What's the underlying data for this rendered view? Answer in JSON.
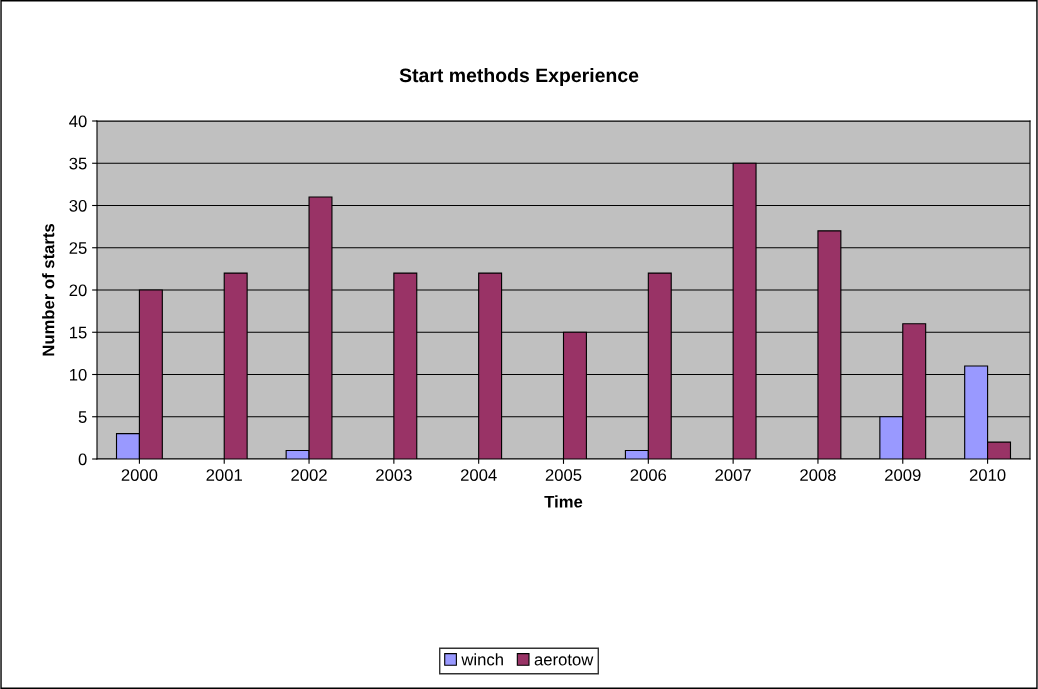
{
  "chart_data": {
    "type": "bar",
    "title": "Start methods Experience",
    "xlabel": "Time",
    "ylabel": "Number of starts",
    "categories": [
      "2000",
      "2001",
      "2002",
      "2003",
      "2004",
      "2005",
      "2006",
      "2007",
      "2008",
      "2009",
      "2010"
    ],
    "series": [
      {
        "name": "winch",
        "color": "#9999ff",
        "values": [
          3,
          0,
          1,
          0,
          0,
          0,
          1,
          0,
          0,
          5,
          11
        ]
      },
      {
        "name": "aerotow",
        "color": "#993366",
        "values": [
          20,
          22,
          31,
          22,
          22,
          15,
          22,
          35,
          27,
          16,
          2
        ]
      }
    ],
    "ylim": [
      0,
      40
    ],
    "yticks": [
      0,
      5,
      10,
      15,
      20,
      25,
      30,
      35,
      40
    ],
    "grid": "y",
    "legend": "bottom"
  }
}
